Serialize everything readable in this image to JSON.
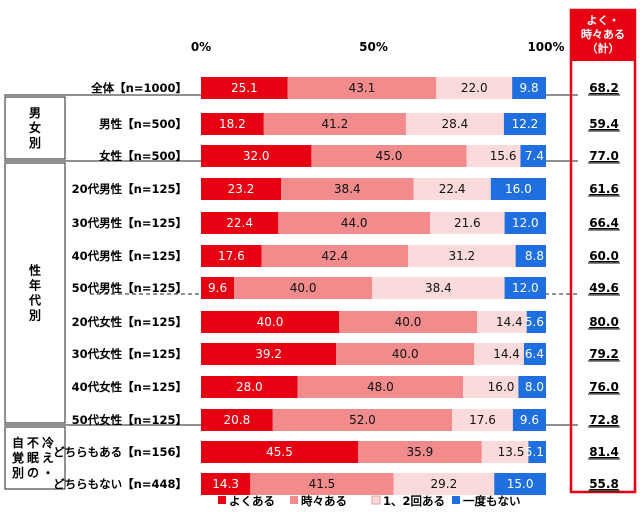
{
  "chart_data": {
    "type": "bar",
    "stacked": true,
    "orientation": "horizontal",
    "xlim": [
      0,
      100
    ],
    "ticks": [
      "0%",
      "50%",
      "100%"
    ],
    "series_names": [
      "よくある",
      "時々ある",
      "1、2回ある",
      "一度もない"
    ],
    "colors": [
      "#e60012",
      "#f28b8b",
      "#fadada",
      "#1f6fe0"
    ],
    "total_header": [
      "よく・",
      "時々ある",
      "（計）"
    ],
    "rows": [
      {
        "label": "全体【n=1000】",
        "values": [
          25.1,
          43.1,
          22.0,
          9.8
        ],
        "total": "68.2"
      },
      {
        "label": "男性【n=500】",
        "values": [
          18.2,
          41.2,
          28.4,
          12.2
        ],
        "total": "59.4"
      },
      {
        "label": "女性【n=500】",
        "values": [
          32.0,
          45.0,
          15.6,
          7.4
        ],
        "total": "77.0"
      },
      {
        "label": "20代男性【n=125】",
        "values": [
          23.2,
          38.4,
          22.4,
          16.0
        ],
        "total": "61.6"
      },
      {
        "label": "30代男性【n=125】",
        "values": [
          22.4,
          44.0,
          21.6,
          12.0
        ],
        "total": "66.4"
      },
      {
        "label": "40代男性【n=125】",
        "values": [
          17.6,
          42.4,
          31.2,
          8.8
        ],
        "total": "60.0"
      },
      {
        "label": "50代男性【n=125】",
        "values": [
          9.6,
          40.0,
          38.4,
          12.0
        ],
        "total": "49.6"
      },
      {
        "label": "20代女性【n=125】",
        "values": [
          40.0,
          40.0,
          14.4,
          5.6
        ],
        "total": "80.0"
      },
      {
        "label": "30代女性【n=125】",
        "values": [
          39.2,
          40.0,
          14.4,
          6.4
        ],
        "total": "79.2"
      },
      {
        "label": "40代女性【n=125】",
        "values": [
          28.0,
          48.0,
          16.0,
          8.0
        ],
        "total": "76.0"
      },
      {
        "label": "50代女性【n=125】",
        "values": [
          20.8,
          52.0,
          17.6,
          9.6
        ],
        "total": "72.8"
      },
      {
        "label": "どちらもある【n=156】",
        "values": [
          45.5,
          35.9,
          13.5,
          5.1
        ],
        "total": "81.4"
      },
      {
        "label": "どちらもない【n=448】",
        "values": [
          14.3,
          41.5,
          29.2,
          15.0
        ],
        "total": "55.8"
      }
    ],
    "groups": [
      {
        "text": "男女別",
        "columns": [
          "男女別"
        ]
      },
      {
        "text": "性年代別",
        "columns": [
          "性年代別"
        ]
      },
      {
        "text": "冷え・不眠の自覚別",
        "columns": [
          "冷え・",
          "不眠の",
          "自覚別"
        ]
      }
    ]
  }
}
